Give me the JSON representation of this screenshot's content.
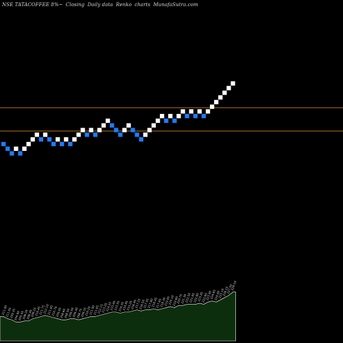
{
  "header": {
    "symbol": "NSE TATACOFFEE 8%~",
    "closing": "Closing",
    "daily": "Daily data",
    "renko": "Renko",
    "charts": "charts",
    "brand": "MunafaSutra.com"
  },
  "colors": {
    "background": "#000000",
    "up_brick": "#ffffff",
    "down_brick": "#1f7bff",
    "reference_line": "#b07818",
    "volume_fill": "#0d2e0d"
  },
  "chart_data": {
    "type": "renko",
    "brick_size": 1,
    "bricks": [
      {
        "level": 20,
        "dir": "down"
      },
      {
        "level": 19,
        "dir": "down"
      },
      {
        "level": 18,
        "dir": "down"
      },
      {
        "level": 19,
        "dir": "up"
      },
      {
        "level": 18,
        "dir": "down"
      },
      {
        "level": 19,
        "dir": "up"
      },
      {
        "level": 20,
        "dir": "up"
      },
      {
        "level": 21,
        "dir": "up"
      },
      {
        "level": 22,
        "dir": "up"
      },
      {
        "level": 21,
        "dir": "down"
      },
      {
        "level": 22,
        "dir": "up"
      },
      {
        "level": 21,
        "dir": "down"
      },
      {
        "level": 20,
        "dir": "down"
      },
      {
        "level": 21,
        "dir": "up"
      },
      {
        "level": 20,
        "dir": "down"
      },
      {
        "level": 21,
        "dir": "up"
      },
      {
        "level": 20,
        "dir": "down"
      },
      {
        "level": 21,
        "dir": "up"
      },
      {
        "level": 22,
        "dir": "up"
      },
      {
        "level": 23,
        "dir": "up"
      },
      {
        "level": 22,
        "dir": "down"
      },
      {
        "level": 23,
        "dir": "up"
      },
      {
        "level": 22,
        "dir": "down"
      },
      {
        "level": 23,
        "dir": "up"
      },
      {
        "level": 24,
        "dir": "up"
      },
      {
        "level": 25,
        "dir": "up"
      },
      {
        "level": 24,
        "dir": "down"
      },
      {
        "level": 23,
        "dir": "down"
      },
      {
        "level": 22,
        "dir": "down"
      },
      {
        "level": 23,
        "dir": "up"
      },
      {
        "level": 24,
        "dir": "up"
      },
      {
        "level": 23,
        "dir": "down"
      },
      {
        "level": 22,
        "dir": "down"
      },
      {
        "level": 21,
        "dir": "down"
      },
      {
        "level": 22,
        "dir": "up"
      },
      {
        "level": 23,
        "dir": "up"
      },
      {
        "level": 24,
        "dir": "up"
      },
      {
        "level": 25,
        "dir": "up"
      },
      {
        "level": 26,
        "dir": "up"
      },
      {
        "level": 25,
        "dir": "down"
      },
      {
        "level": 26,
        "dir": "up"
      },
      {
        "level": 25,
        "dir": "down"
      },
      {
        "level": 26,
        "dir": "up"
      },
      {
        "level": 27,
        "dir": "up"
      },
      {
        "level": 26,
        "dir": "down"
      },
      {
        "level": 27,
        "dir": "up"
      },
      {
        "level": 26,
        "dir": "down"
      },
      {
        "level": 27,
        "dir": "up"
      },
      {
        "level": 26,
        "dir": "down"
      },
      {
        "level": 27,
        "dir": "up"
      },
      {
        "level": 28,
        "dir": "up"
      },
      {
        "level": 29,
        "dir": "up"
      },
      {
        "level": 30,
        "dir": "up"
      },
      {
        "level": 31,
        "dir": "up"
      },
      {
        "level": 32,
        "dir": "up"
      },
      {
        "level": 33,
        "dir": "up"
      }
    ],
    "reference_levels": [
      27.8,
      22.8
    ],
    "volume_labels": [
      "211.00",
      "211.05",
      "209.35",
      "204.60",
      "205.45",
      "206.20",
      "206.40",
      "209.25",
      "210.45",
      "211.75",
      "212.10",
      "211.85",
      "210.70",
      "209.05",
      "208.60",
      "208.50",
      "209.05",
      "209.40",
      "208.75",
      "209.55",
      "210.20",
      "211.90",
      "211.65",
      "212.15",
      "213.20",
      "214.25",
      "215.40",
      "215.55",
      "214.35",
      "214.95",
      "215.20",
      "216.40",
      "217.25",
      "216.50",
      "217.45",
      "217.80",
      "218.45",
      "217.65",
      "218.30",
      "219.05",
      "220.10",
      "219.60",
      "220.75",
      "221.30",
      "222.50",
      "221.85",
      "222.80",
      "223.45",
      "222.60",
      "223.90",
      "224.65",
      "224.00",
      "225.10",
      "226.15",
      "227.55",
      "229.10"
    ],
    "volume_values": [
      22,
      20,
      19,
      17,
      17,
      18,
      18,
      20,
      21,
      22,
      23,
      22,
      21,
      20,
      19,
      19,
      20,
      20,
      19,
      20,
      21,
      22,
      22,
      23,
      24,
      25,
      26,
      26,
      25,
      26,
      26,
      27,
      28,
      27,
      28,
      28,
      29,
      28,
      29,
      30,
      31,
      30,
      32,
      32,
      33,
      33,
      33,
      34,
      33,
      35,
      36,
      35,
      37,
      39,
      41,
      44
    ]
  }
}
